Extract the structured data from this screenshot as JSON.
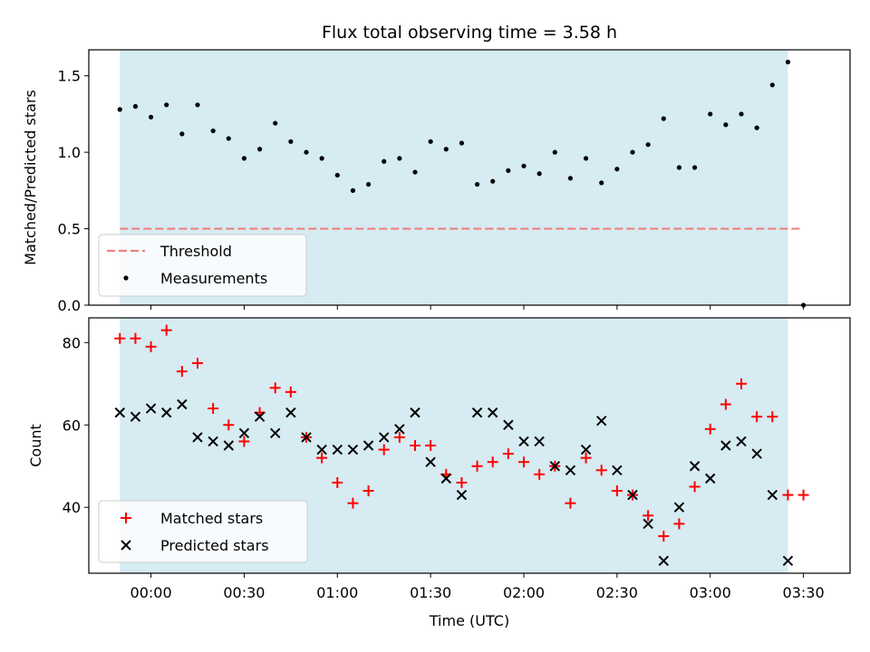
{
  "chart_data": [
    {
      "type": "scatter",
      "title": "Flux total observing time = 3.58 h",
      "xlabel": "",
      "ylabel": "Matched/Predicted stars",
      "xlim": [
        "23:40",
        "03:45"
      ],
      "ylim": [
        0,
        1.67
      ],
      "yticks": [
        "0.0",
        "0.5",
        "1.0",
        "1.5"
      ],
      "observing_window": [
        "23:50",
        "03:25"
      ],
      "threshold": 0.5,
      "legend_position": "lower-left",
      "legend": [
        "Threshold",
        "Measurements"
      ],
      "series": [
        {
          "name": "Measurements",
          "points": [
            [
              "23:50",
              1.28
            ],
            [
              "23:55",
              1.3
            ],
            [
              "00:00",
              1.23
            ],
            [
              "00:05",
              1.31
            ],
            [
              "00:10",
              1.12
            ],
            [
              "00:15",
              1.31
            ],
            [
              "00:20",
              1.14
            ],
            [
              "00:25",
              1.09
            ],
            [
              "00:30",
              0.96
            ],
            [
              "00:35",
              1.02
            ],
            [
              "00:40",
              1.19
            ],
            [
              "00:45",
              1.07
            ],
            [
              "00:50",
              1.0
            ],
            [
              "00:55",
              0.96
            ],
            [
              "01:00",
              0.85
            ],
            [
              "01:05",
              0.75
            ],
            [
              "01:10",
              0.79
            ],
            [
              "01:15",
              0.94
            ],
            [
              "01:20",
              0.96
            ],
            [
              "01:25",
              0.87
            ],
            [
              "01:30",
              1.07
            ],
            [
              "01:35",
              1.02
            ],
            [
              "01:40",
              1.06
            ],
            [
              "01:45",
              0.79
            ],
            [
              "01:50",
              0.81
            ],
            [
              "01:55",
              0.88
            ],
            [
              "02:00",
              0.91
            ],
            [
              "02:05",
              0.86
            ],
            [
              "02:10",
              1.0
            ],
            [
              "02:15",
              0.83
            ],
            [
              "02:20",
              0.96
            ],
            [
              "02:25",
              0.8
            ],
            [
              "02:30",
              0.89
            ],
            [
              "02:35",
              1.0
            ],
            [
              "02:40",
              1.05
            ],
            [
              "02:45",
              1.22
            ],
            [
              "02:50",
              0.9
            ],
            [
              "02:55",
              0.9
            ],
            [
              "03:00",
              1.25
            ],
            [
              "03:05",
              1.18
            ],
            [
              "03:10",
              1.25
            ],
            [
              "03:15",
              1.16
            ],
            [
              "03:20",
              1.44
            ],
            [
              "03:25",
              1.59
            ],
            [
              "03:30",
              0.0
            ]
          ]
        }
      ]
    },
    {
      "type": "scatter",
      "title": "",
      "xlabel": "Time (UTC)",
      "ylabel": "Count",
      "xlim": [
        "23:40",
        "03:45"
      ],
      "ylim": [
        24,
        86
      ],
      "xticks": [
        "00:00",
        "00:30",
        "01:00",
        "01:30",
        "02:00",
        "02:30",
        "03:00",
        "03:30"
      ],
      "yticks": [
        "40",
        "60",
        "80"
      ],
      "observing_window": [
        "23:50",
        "03:25"
      ],
      "legend_position": "lower-left",
      "legend": [
        "Matched stars",
        "Predicted stars"
      ],
      "series": [
        {
          "name": "Matched stars",
          "color": "#ff0000",
          "marker": "plus",
          "points": [
            [
              "23:50",
              81
            ],
            [
              "23:55",
              81
            ],
            [
              "00:00",
              79
            ],
            [
              "00:05",
              83
            ],
            [
              "00:10",
              73
            ],
            [
              "00:15",
              75
            ],
            [
              "00:20",
              64
            ],
            [
              "00:25",
              60
            ],
            [
              "00:30",
              56
            ],
            [
              "00:35",
              63
            ],
            [
              "00:40",
              69
            ],
            [
              "00:45",
              68
            ],
            [
              "00:50",
              57
            ],
            [
              "00:55",
              52
            ],
            [
              "01:00",
              46
            ],
            [
              "01:05",
              41
            ],
            [
              "01:10",
              44
            ],
            [
              "01:15",
              54
            ],
            [
              "01:20",
              57
            ],
            [
              "01:25",
              55
            ],
            [
              "01:30",
              55
            ],
            [
              "01:35",
              48
            ],
            [
              "01:40",
              46
            ],
            [
              "01:45",
              50
            ],
            [
              "01:50",
              51
            ],
            [
              "01:55",
              53
            ],
            [
              "02:00",
              51
            ],
            [
              "02:05",
              48
            ],
            [
              "02:10",
              50
            ],
            [
              "02:15",
              41
            ],
            [
              "02:20",
              52
            ],
            [
              "02:25",
              49
            ],
            [
              "02:30",
              44
            ],
            [
              "02:35",
              43
            ],
            [
              "02:40",
              38
            ],
            [
              "02:45",
              33
            ],
            [
              "02:50",
              36
            ],
            [
              "02:55",
              45
            ],
            [
              "03:00",
              59
            ],
            [
              "03:05",
              65
            ],
            [
              "03:10",
              70
            ],
            [
              "03:15",
              62
            ],
            [
              "03:20",
              62
            ],
            [
              "03:25",
              43
            ],
            [
              "03:30",
              43
            ]
          ]
        },
        {
          "name": "Predicted stars",
          "color": "#000000",
          "marker": "x",
          "points": [
            [
              "23:50",
              63
            ],
            [
              "23:55",
              62
            ],
            [
              "00:00",
              64
            ],
            [
              "00:05",
              63
            ],
            [
              "00:10",
              65
            ],
            [
              "00:15",
              57
            ],
            [
              "00:20",
              56
            ],
            [
              "00:25",
              55
            ],
            [
              "00:30",
              58
            ],
            [
              "00:35",
              62
            ],
            [
              "00:40",
              58
            ],
            [
              "00:45",
              63
            ],
            [
              "00:50",
              57
            ],
            [
              "00:55",
              54
            ],
            [
              "01:00",
              54
            ],
            [
              "01:05",
              54
            ],
            [
              "01:10",
              55
            ],
            [
              "01:15",
              57
            ],
            [
              "01:20",
              59
            ],
            [
              "01:25",
              63
            ],
            [
              "01:30",
              51
            ],
            [
              "01:35",
              47
            ],
            [
              "01:40",
              43
            ],
            [
              "01:45",
              63
            ],
            [
              "01:50",
              63
            ],
            [
              "01:55",
              60
            ],
            [
              "02:00",
              56
            ],
            [
              "02:05",
              56
            ],
            [
              "02:10",
              50
            ],
            [
              "02:15",
              49
            ],
            [
              "02:20",
              54
            ],
            [
              "02:25",
              61
            ],
            [
              "02:30",
              49
            ],
            [
              "02:35",
              43
            ],
            [
              "02:40",
              36
            ],
            [
              "02:45",
              27
            ],
            [
              "02:50",
              40
            ],
            [
              "02:55",
              50
            ],
            [
              "03:00",
              47
            ],
            [
              "03:05",
              55
            ],
            [
              "03:10",
              56
            ],
            [
              "03:15",
              53
            ],
            [
              "03:20",
              43
            ],
            [
              "03:25",
              27
            ]
          ]
        }
      ]
    }
  ],
  "colors": {
    "observing_window": "#add8e6",
    "threshold": "#f08080",
    "measurements": "#000000",
    "matched": "#ff0000",
    "predicted": "#000000"
  }
}
